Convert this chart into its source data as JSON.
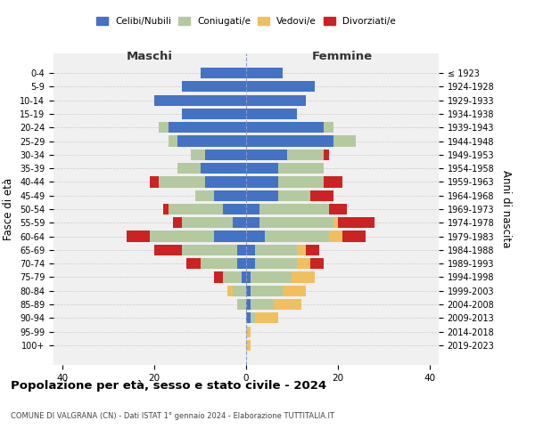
{
  "age_groups": [
    "0-4",
    "5-9",
    "10-14",
    "15-19",
    "20-24",
    "25-29",
    "30-34",
    "35-39",
    "40-44",
    "45-49",
    "50-54",
    "55-59",
    "60-64",
    "65-69",
    "70-74",
    "75-79",
    "80-84",
    "85-89",
    "90-94",
    "95-99",
    "100+"
  ],
  "birth_years": [
    "2019-2023",
    "2014-2018",
    "2009-2013",
    "2004-2008",
    "1999-2003",
    "1994-1998",
    "1989-1993",
    "1984-1988",
    "1979-1983",
    "1974-1978",
    "1969-1973",
    "1964-1968",
    "1959-1963",
    "1954-1958",
    "1949-1953",
    "1944-1948",
    "1939-1943",
    "1934-1938",
    "1929-1933",
    "1924-1928",
    "≤ 1923"
  ],
  "colors": {
    "celibi": "#4472c4",
    "coniugati": "#b5c9a0",
    "vedovi": "#f0c060",
    "divorziati": "#cc2222"
  },
  "males": {
    "celibi": [
      10,
      14,
      20,
      14,
      17,
      15,
      9,
      10,
      9,
      7,
      5,
      3,
      7,
      2,
      2,
      1,
      0,
      0,
      0,
      0,
      0
    ],
    "coniugati": [
      0,
      0,
      0,
      0,
      2,
      2,
      3,
      5,
      10,
      4,
      12,
      11,
      14,
      12,
      8,
      4,
      3,
      2,
      0,
      0,
      0
    ],
    "vedovi": [
      0,
      0,
      0,
      0,
      0,
      0,
      0,
      0,
      0,
      0,
      0,
      0,
      0,
      0,
      0,
      0,
      1,
      0,
      0,
      0,
      0
    ],
    "divorziati": [
      0,
      0,
      0,
      0,
      0,
      0,
      0,
      0,
      2,
      0,
      1,
      2,
      5,
      6,
      3,
      2,
      0,
      0,
      0,
      0,
      0
    ]
  },
  "females": {
    "celibi": [
      8,
      15,
      13,
      11,
      17,
      19,
      9,
      7,
      7,
      7,
      3,
      3,
      4,
      2,
      2,
      1,
      1,
      1,
      1,
      0,
      0
    ],
    "coniugati": [
      0,
      0,
      0,
      0,
      2,
      5,
      8,
      10,
      10,
      7,
      15,
      16,
      14,
      9,
      9,
      9,
      7,
      5,
      1,
      0,
      0
    ],
    "vedovi": [
      0,
      0,
      0,
      0,
      0,
      0,
      0,
      0,
      0,
      0,
      0,
      1,
      3,
      2,
      3,
      5,
      5,
      6,
      5,
      1,
      1
    ],
    "divorziati": [
      0,
      0,
      0,
      0,
      0,
      0,
      1,
      0,
      4,
      5,
      4,
      8,
      5,
      3,
      3,
      0,
      0,
      0,
      0,
      0,
      0
    ]
  },
  "xlim": 42,
  "xticks": [
    -40,
    -20,
    0,
    20,
    40
  ],
  "xticklabels": [
    "40",
    "20",
    "0",
    "20",
    "40"
  ],
  "title": "Popolazione per età, sesso e stato civile - 2024",
  "subtitle": "COMUNE DI VALGRANA (CN) - Dati ISTAT 1° gennaio 2024 - Elaborazione TUTTITALIA.IT",
  "ylabel_left": "Fasce di età",
  "ylabel_right": "Anni di nascita",
  "maschi_label": "Maschi",
  "femmine_label": "Femmine",
  "bg_color": "#f0f0f0"
}
